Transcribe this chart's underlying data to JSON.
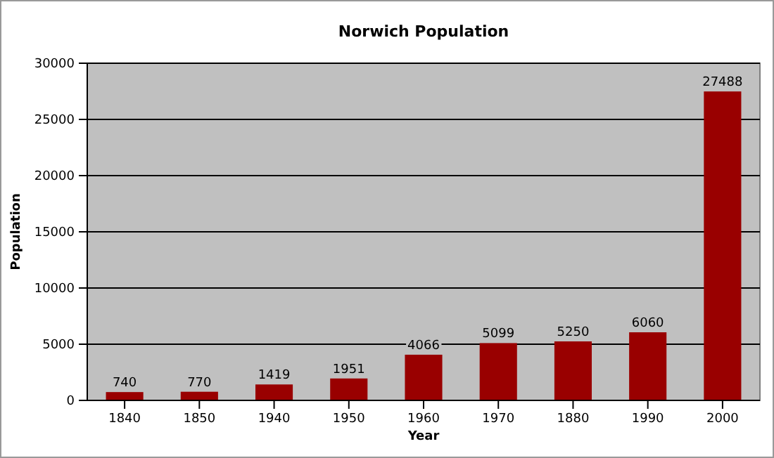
{
  "chart_data": {
    "type": "bar",
    "title": "Norwich Population",
    "xlabel": "Year",
    "ylabel": "Population",
    "categories": [
      "1840",
      "1850",
      "1940",
      "1950",
      "1960",
      "1970",
      "1880",
      "1990",
      "2000"
    ],
    "values": [
      740,
      770,
      1419,
      1951,
      4066,
      5099,
      5250,
      6060,
      27488
    ],
    "color": "#990000",
    "data_labels": true,
    "grid": "y",
    "ylim": [
      0,
      30000
    ],
    "yticks": [
      0,
      5000,
      10000,
      15000,
      20000,
      25000,
      30000
    ]
  }
}
